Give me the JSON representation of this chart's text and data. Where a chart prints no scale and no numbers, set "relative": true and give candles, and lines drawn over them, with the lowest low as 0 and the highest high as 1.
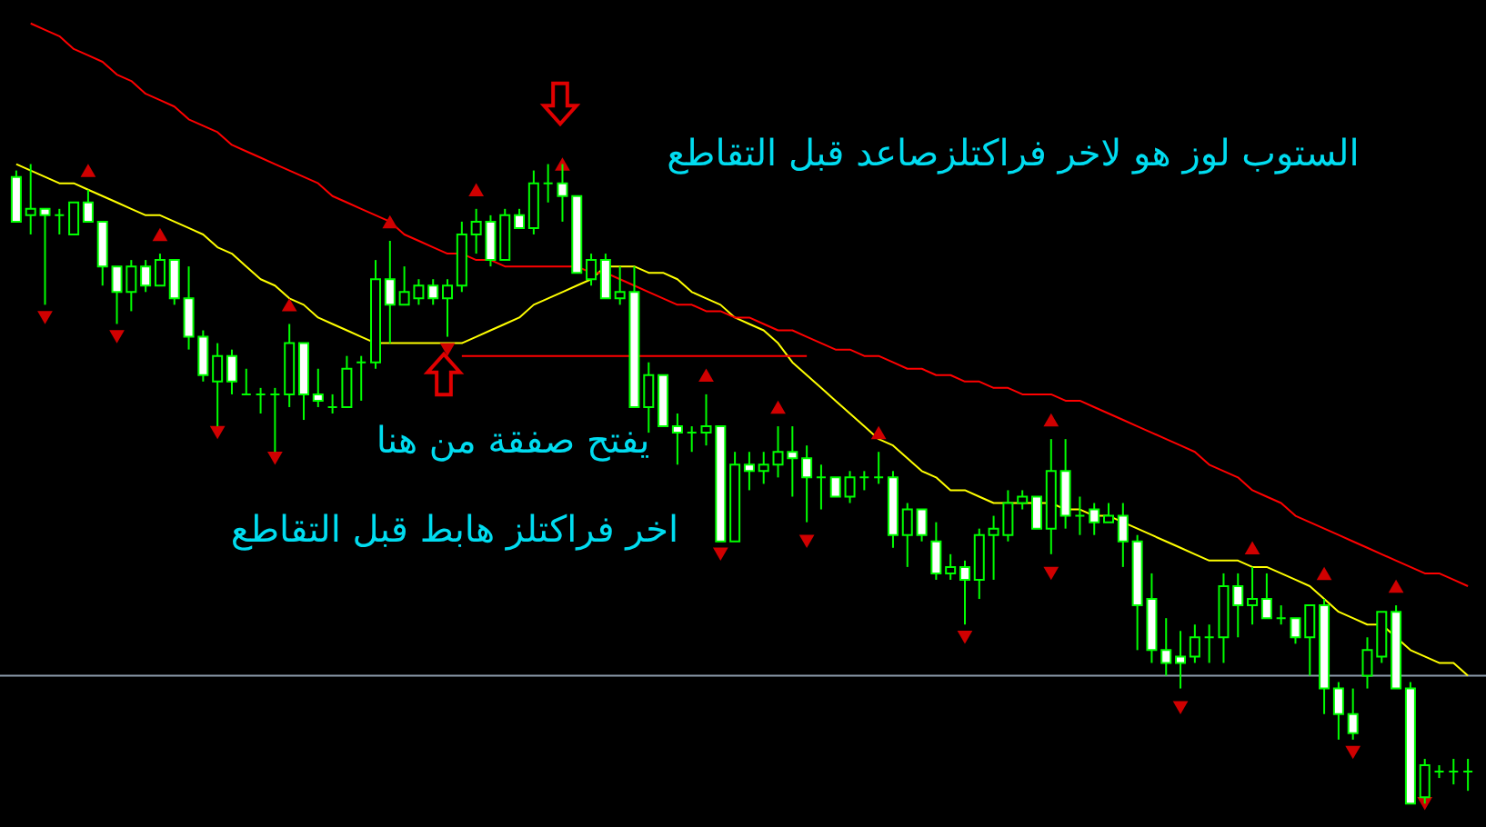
{
  "chart_data": {
    "type": "candlestick",
    "relative": true,
    "color": "#00ff00",
    "categories": [
      null,
      null,
      null,
      null,
      null,
      null,
      null,
      null,
      null,
      null,
      null,
      null,
      null,
      null,
      null,
      null,
      null,
      null,
      null,
      null,
      null,
      null,
      null,
      null,
      null,
      null,
      null,
      null,
      null,
      null,
      null,
      null,
      null,
      null,
      null,
      null,
      null,
      null,
      null,
      null,
      null,
      null,
      null,
      null,
      null,
      null,
      null,
      null,
      null,
      null,
      null,
      null,
      null,
      null,
      null,
      null,
      null,
      null,
      null,
      null,
      null,
      null,
      null,
      null,
      null,
      null,
      null,
      null,
      null,
      null,
      null,
      null,
      null,
      null,
      null,
      null,
      null,
      null,
      null,
      null,
      null,
      null,
      null,
      null,
      null,
      null,
      null,
      null,
      null,
      null,
      null,
      null,
      null,
      null,
      null,
      null,
      null,
      null,
      null,
      null,
      null,
      null
    ],
    "ohlc": [
      [
        0.98,
        0.99,
        0.91,
        0.91
      ],
      [
        0.92,
        1.0,
        0.89,
        0.93
      ],
      [
        0.93,
        0.93,
        0.78,
        0.92
      ],
      [
        0.92,
        0.93,
        0.89,
        0.92
      ],
      [
        0.89,
        0.94,
        0.89,
        0.94
      ],
      [
        0.94,
        0.96,
        0.91,
        0.91
      ],
      [
        0.91,
        0.91,
        0.81,
        0.84
      ],
      [
        0.84,
        0.84,
        0.75,
        0.8
      ],
      [
        0.8,
        0.85,
        0.77,
        0.84
      ],
      [
        0.84,
        0.85,
        0.8,
        0.81
      ],
      [
        0.81,
        0.86,
        0.81,
        0.85
      ],
      [
        0.85,
        0.85,
        0.78,
        0.79
      ],
      [
        0.79,
        0.84,
        0.71,
        0.73
      ],
      [
        0.73,
        0.74,
        0.66,
        0.67
      ],
      [
        0.66,
        0.72,
        0.59,
        0.7
      ],
      [
        0.7,
        0.71,
        0.64,
        0.66
      ],
      [
        0.64,
        0.68,
        0.64,
        0.64
      ],
      [
        0.64,
        0.65,
        0.61,
        0.64
      ],
      [
        0.64,
        0.65,
        0.55,
        0.64
      ],
      [
        0.64,
        0.75,
        0.62,
        0.72
      ],
      [
        0.72,
        0.72,
        0.6,
        0.64
      ],
      [
        0.64,
        0.68,
        0.62,
        0.63
      ],
      [
        0.62,
        0.64,
        0.61,
        0.62
      ],
      [
        0.62,
        0.7,
        0.62,
        0.68
      ],
      [
        0.69,
        0.7,
        0.63,
        0.69
      ],
      [
        0.69,
        0.85,
        0.68,
        0.82
      ],
      [
        0.82,
        0.88,
        0.72,
        0.78
      ],
      [
        0.78,
        0.84,
        0.78,
        0.8
      ],
      [
        0.79,
        0.82,
        0.78,
        0.81
      ],
      [
        0.81,
        0.82,
        0.78,
        0.79
      ],
      [
        0.79,
        0.82,
        0.73,
        0.81
      ],
      [
        0.81,
        0.91,
        0.8,
        0.89
      ],
      [
        0.89,
        0.93,
        0.86,
        0.91
      ],
      [
        0.91,
        0.92,
        0.84,
        0.85
      ],
      [
        0.85,
        0.93,
        0.85,
        0.92
      ],
      [
        0.92,
        0.93,
        0.9,
        0.9
      ],
      [
        0.9,
        0.99,
        0.89,
        0.97
      ],
      [
        0.97,
        1.0,
        0.94,
        0.97
      ],
      [
        0.97,
        1.0,
        0.91,
        0.95
      ],
      [
        0.95,
        0.95,
        0.83,
        0.83
      ],
      [
        0.82,
        0.86,
        0.81,
        0.85
      ],
      [
        0.85,
        0.86,
        0.79,
        0.79
      ],
      [
        0.79,
        0.84,
        0.78,
        0.8
      ],
      [
        0.8,
        0.84,
        0.62,
        0.62
      ],
      [
        0.62,
        0.69,
        0.58,
        0.67
      ],
      [
        0.67,
        0.67,
        0.59,
        0.59
      ],
      [
        0.59,
        0.61,
        0.53,
        0.58
      ],
      [
        0.58,
        0.59,
        0.55,
        0.58
      ],
      [
        0.58,
        0.64,
        0.56,
        0.59
      ],
      [
        0.59,
        0.59,
        0.41,
        0.41
      ],
      [
        0.41,
        0.55,
        0.41,
        0.53
      ],
      [
        0.53,
        0.55,
        0.49,
        0.52
      ],
      [
        0.52,
        0.55,
        0.5,
        0.53
      ],
      [
        0.53,
        0.59,
        0.51,
        0.55
      ],
      [
        0.55,
        0.59,
        0.48,
        0.54
      ],
      [
        0.54,
        0.56,
        0.44,
        0.51
      ],
      [
        0.51,
        0.53,
        0.46,
        0.51
      ],
      [
        0.51,
        0.51,
        0.48,
        0.48
      ],
      [
        0.48,
        0.52,
        0.47,
        0.51
      ],
      [
        0.51,
        0.52,
        0.49,
        0.51
      ],
      [
        0.51,
        0.55,
        0.5,
        0.51
      ],
      [
        0.51,
        0.52,
        0.4,
        0.42
      ],
      [
        0.42,
        0.47,
        0.37,
        0.46
      ],
      [
        0.46,
        0.46,
        0.41,
        0.42
      ],
      [
        0.41,
        0.44,
        0.35,
        0.36
      ],
      [
        0.36,
        0.39,
        0.35,
        0.37
      ],
      [
        0.37,
        0.38,
        0.28,
        0.35
      ],
      [
        0.35,
        0.43,
        0.32,
        0.42
      ],
      [
        0.42,
        0.45,
        0.35,
        0.43
      ],
      [
        0.42,
        0.49,
        0.41,
        0.47
      ],
      [
        0.47,
        0.49,
        0.46,
        0.48
      ],
      [
        0.48,
        0.48,
        0.43,
        0.43
      ],
      [
        0.43,
        0.57,
        0.39,
        0.52
      ],
      [
        0.52,
        0.57,
        0.43,
        0.45
      ],
      [
        0.45,
        0.48,
        0.42,
        0.45
      ],
      [
        0.46,
        0.47,
        0.42,
        0.44
      ],
      [
        0.44,
        0.47,
        0.44,
        0.45
      ],
      [
        0.45,
        0.47,
        0.37,
        0.41
      ],
      [
        0.41,
        0.42,
        0.24,
        0.31
      ],
      [
        0.32,
        0.36,
        0.22,
        0.24
      ],
      [
        0.24,
        0.29,
        0.2,
        0.22
      ],
      [
        0.23,
        0.27,
        0.18,
        0.22
      ],
      [
        0.23,
        0.28,
        0.22,
        0.26
      ],
      [
        0.26,
        0.28,
        0.22,
        0.26
      ],
      [
        0.26,
        0.36,
        0.22,
        0.34
      ],
      [
        0.34,
        0.36,
        0.26,
        0.31
      ],
      [
        0.31,
        0.37,
        0.28,
        0.32
      ],
      [
        0.32,
        0.36,
        0.29,
        0.29
      ],
      [
        0.29,
        0.31,
        0.28,
        0.29
      ],
      [
        0.29,
        0.29,
        0.25,
        0.26
      ],
      [
        0.26,
        0.31,
        0.2,
        0.31
      ],
      [
        0.31,
        0.32,
        0.14,
        0.18
      ],
      [
        0.18,
        0.19,
        0.1,
        0.14
      ],
      [
        0.14,
        0.18,
        0.1,
        0.11
      ],
      [
        0.2,
        0.26,
        0.18,
        0.24
      ],
      [
        0.23,
        0.3,
        0.22,
        0.3
      ],
      [
        0.3,
        0.31,
        0.18,
        0.18
      ],
      [
        0.18,
        0.19,
        0.0,
        0.0
      ],
      [
        0.01,
        0.07,
        0.0,
        0.06
      ],
      [
        0.05,
        0.06,
        0.04,
        0.05
      ],
      [
        0.05,
        0.07,
        0.03,
        0.05
      ],
      [
        0.05,
        0.07,
        0.02,
        0.05
      ]
    ],
    "series": [
      {
        "type": "line",
        "color": "#ffff00",
        "values": [
          1.0,
          0.99,
          0.98,
          0.97,
          0.97,
          0.96,
          0.95,
          0.94,
          0.93,
          0.92,
          0.92,
          0.91,
          0.9,
          0.89,
          0.87,
          0.86,
          0.84,
          0.82,
          0.81,
          0.79,
          0.78,
          0.76,
          0.75,
          0.74,
          0.73,
          0.72,
          0.72,
          0.72,
          0.72,
          0.72,
          0.72,
          0.72,
          0.73,
          0.74,
          0.75,
          0.76,
          0.78,
          0.79,
          0.8,
          0.81,
          0.82,
          0.84,
          0.84,
          0.84,
          0.83,
          0.83,
          0.82,
          0.8,
          0.79,
          0.78,
          0.76,
          0.75,
          0.74,
          0.72,
          0.69,
          0.67,
          0.65,
          0.63,
          0.61,
          0.59,
          0.57,
          0.56,
          0.54,
          0.52,
          0.51,
          0.49,
          0.49,
          0.48,
          0.47,
          0.47,
          0.47,
          0.47,
          0.47,
          0.46,
          0.46,
          0.45,
          0.45,
          0.44,
          0.43,
          0.42,
          0.41,
          0.4,
          0.39,
          0.38,
          0.38,
          0.38,
          0.37,
          0.37,
          0.36,
          0.35,
          0.34,
          0.32,
          0.3,
          0.29,
          0.28,
          0.28,
          0.26,
          0.24,
          0.23,
          0.22,
          0.22,
          0.2
        ]
      },
      {
        "type": "line",
        "color": "#ff0000",
        "values": [
          null,
          1.22,
          1.21,
          1.2,
          1.18,
          1.17,
          1.16,
          1.14,
          1.13,
          1.11,
          1.1,
          1.09,
          1.07,
          1.06,
          1.05,
          1.03,
          1.02,
          1.01,
          1.0,
          0.99,
          0.98,
          0.97,
          0.95,
          0.94,
          0.93,
          0.92,
          0.91,
          0.89,
          0.88,
          0.87,
          0.86,
          0.86,
          0.85,
          0.85,
          0.84,
          0.84,
          0.84,
          0.84,
          0.84,
          0.84,
          0.83,
          0.83,
          0.82,
          0.81,
          0.8,
          0.79,
          0.78,
          0.78,
          0.77,
          0.77,
          0.76,
          0.76,
          0.75,
          0.74,
          0.74,
          0.73,
          0.72,
          0.71,
          0.71,
          0.7,
          0.7,
          0.69,
          0.68,
          0.68,
          0.67,
          0.67,
          0.66,
          0.66,
          0.65,
          0.65,
          0.64,
          0.64,
          0.64,
          0.63,
          0.63,
          0.62,
          0.61,
          0.6,
          0.59,
          0.58,
          0.57,
          0.56,
          0.55,
          0.53,
          0.52,
          0.51,
          0.49,
          0.48,
          0.47,
          0.45,
          0.44,
          0.43,
          0.42,
          0.41,
          0.4,
          0.39,
          0.38,
          0.37,
          0.36,
          0.36,
          0.35,
          0.34
        ]
      },
      {
        "type": "line",
        "color": "#ff0000",
        "values": [
          null,
          null,
          null,
          null,
          null,
          null,
          null,
          null,
          null,
          null,
          null,
          null,
          null,
          null,
          null,
          null,
          null,
          null,
          null,
          null,
          null,
          null,
          null,
          null,
          null,
          null,
          null,
          null,
          null,
          null,
          null,
          0.7,
          0.7,
          0.7,
          0.7,
          0.7,
          0.7,
          0.7,
          0.7,
          0.7,
          0.7,
          0.7,
          0.7,
          0.7,
          0.7,
          0.7,
          0.7,
          0.7,
          0.7,
          0.7,
          0.7,
          0.7,
          0.7,
          0.7,
          0.7,
          0.7,
          null,
          null,
          null,
          null,
          null,
          null,
          null,
          null,
          null,
          null,
          null,
          null,
          null,
          null,
          null,
          null,
          null,
          null,
          null,
          null,
          null,
          null,
          null,
          null,
          null,
          null,
          null,
          null,
          null,
          null,
          null,
          null,
          null,
          null,
          null,
          null,
          null,
          null,
          null,
          null,
          null,
          null,
          null,
          null,
          null,
          null
        ]
      },
      {
        "type": "scatter",
        "marker": "triangle",
        "color": "#d00000",
        "values": [
          null,
          null,
          null,
          null,
          null,
          0.99,
          null,
          null,
          null,
          null,
          0.89,
          null,
          null,
          null,
          null,
          null,
          null,
          null,
          null,
          0.78,
          null,
          null,
          null,
          null,
          null,
          null,
          0.91,
          null,
          null,
          null,
          null,
          null,
          0.96,
          null,
          null,
          null,
          null,
          null,
          1.0,
          null,
          null,
          null,
          null,
          null,
          null,
          null,
          null,
          null,
          0.67,
          null,
          null,
          null,
          null,
          0.62,
          null,
          null,
          null,
          null,
          null,
          null,
          0.58,
          null,
          null,
          null,
          null,
          null,
          null,
          null,
          null,
          null,
          null,
          null,
          0.6,
          null,
          null,
          null,
          null,
          null,
          null,
          null,
          null,
          null,
          null,
          null,
          null,
          null,
          0.4,
          null,
          null,
          null,
          null,
          0.36,
          null,
          null,
          null,
          null,
          0.34,
          null,
          null,
          null,
          null,
          null
        ]
      },
      {
        "type": "scatter",
        "marker": "triangle",
        "color": "#d00000",
        "values": [
          null,
          null,
          0.76,
          null,
          null,
          null,
          null,
          0.73,
          null,
          null,
          null,
          null,
          null,
          null,
          0.58,
          null,
          null,
          null,
          0.54,
          null,
          null,
          null,
          null,
          null,
          null,
          null,
          null,
          null,
          null,
          null,
          0.71,
          null,
          null,
          null,
          null,
          null,
          null,
          null,
          null,
          null,
          null,
          null,
          null,
          null,
          null,
          null,
          null,
          null,
          null,
          0.39,
          null,
          null,
          null,
          null,
          null,
          0.41,
          null,
          null,
          null,
          null,
          null,
          null,
          null,
          null,
          null,
          null,
          0.26,
          null,
          null,
          null,
          null,
          null,
          0.36,
          null,
          null,
          null,
          null,
          null,
          null,
          null,
          null,
          0.15,
          null,
          null,
          null,
          null,
          null,
          null,
          null,
          null,
          null,
          null,
          null,
          0.08,
          null,
          null,
          null,
          null,
          0.0,
          null,
          null,
          null
        ]
      }
    ],
    "ref_lines": [
      {
        "axis": "y",
        "value": 0.2,
        "color": "#8c9bab"
      }
    ],
    "annotations": [
      "الستوب لوز هو لاخر فراكتلزصاعد قبل التقاطع",
      "يفتح صفقة من هنا",
      "اخر فراكتلز هابط قبل التقاطع"
    ]
  }
}
